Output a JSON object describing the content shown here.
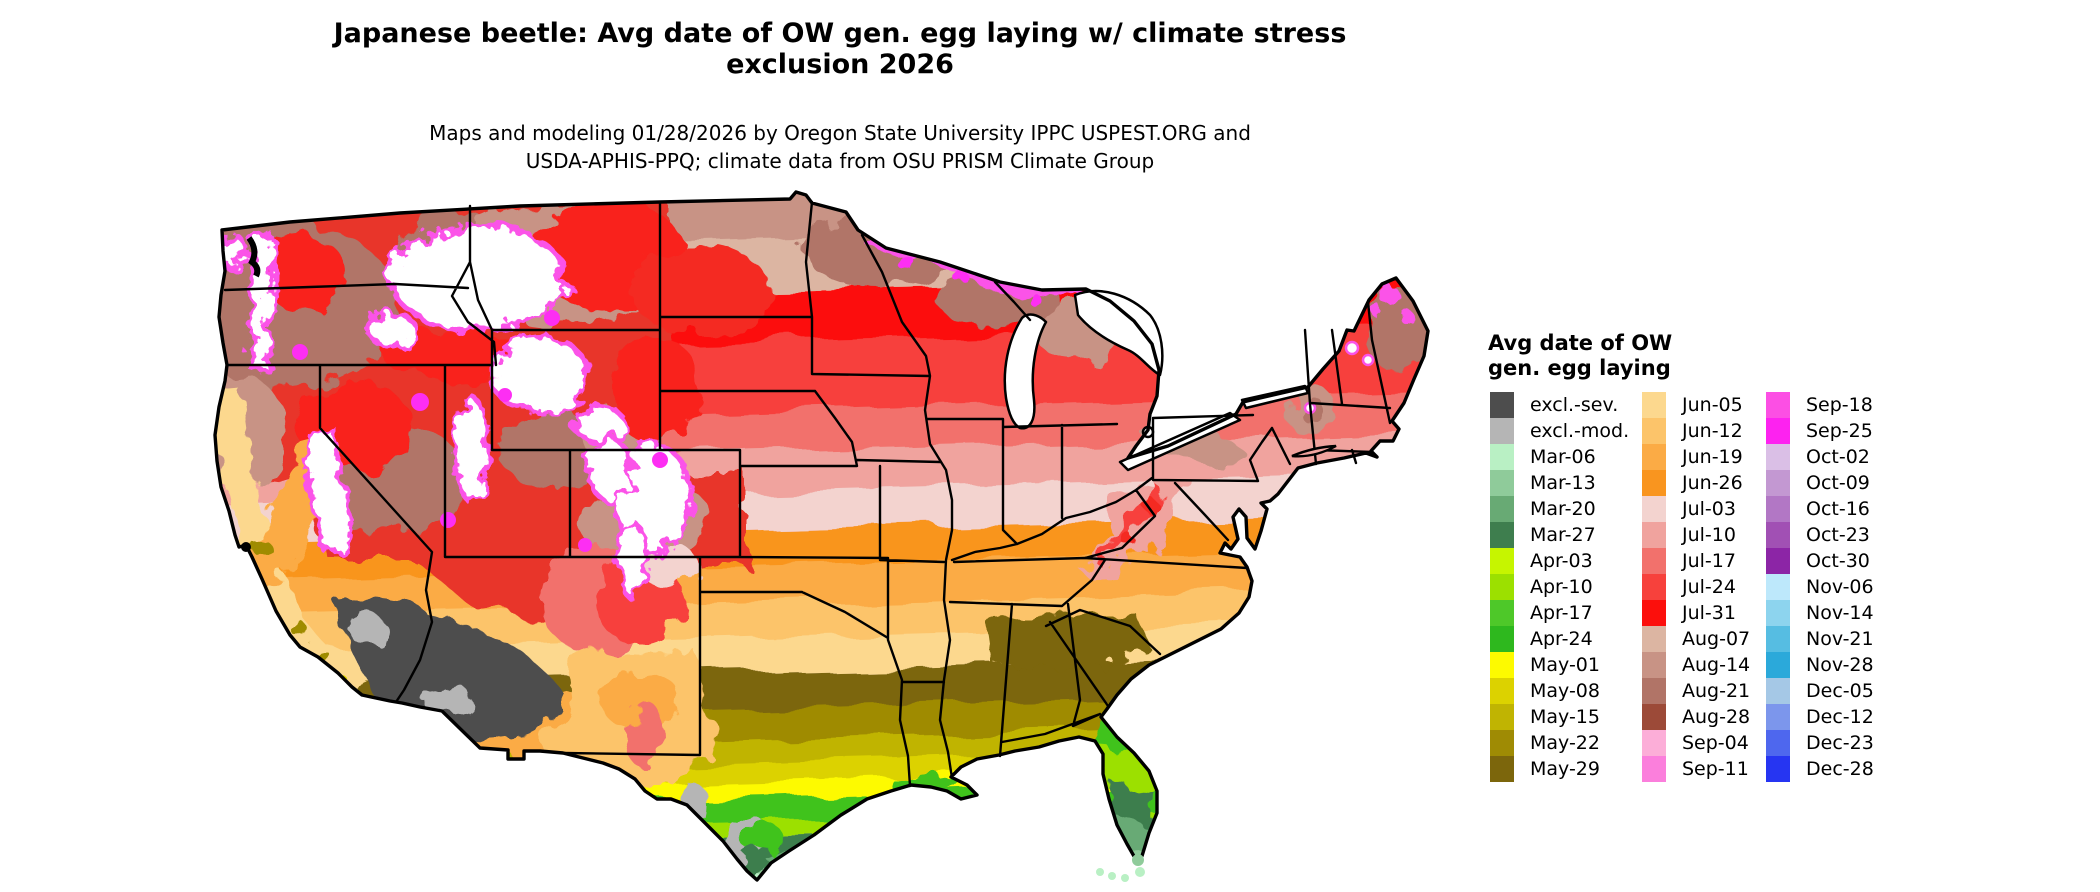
{
  "title": {
    "line1": "Japanese beetle: Avg date of OW gen. egg laying w/ climate stress",
    "line2": "exclusion 2026"
  },
  "subtitle": {
    "line1": "Maps and modeling 01/28/2026 by Oregon State University IPPC USPEST.ORG and",
    "line2": "USDA-APHIS-PPQ; climate data from OSU PRISM Climate Group"
  },
  "legend": {
    "title_line1": "Avg date of OW",
    "title_line2": "gen. egg laying",
    "columns": [
      [
        {
          "label": "excl.-sev.",
          "color": "#4d4d4d"
        },
        {
          "label": "excl.-mod.",
          "color": "#b5b5b5"
        },
        {
          "label": "Mar-06",
          "color": "#b9f0c4"
        },
        {
          "label": "Mar-13",
          "color": "#8fcb9a"
        },
        {
          "label": "Mar-20",
          "color": "#68aa74"
        },
        {
          "label": "Mar-27",
          "color": "#3e7e4e"
        },
        {
          "label": "Apr-03",
          "color": "#c6f500"
        },
        {
          "label": "Apr-10",
          "color": "#9ce000"
        },
        {
          "label": "Apr-17",
          "color": "#4ec829"
        },
        {
          "label": "Apr-24",
          "color": "#2eb81e"
        },
        {
          "label": "May-01",
          "color": "#fdfa00"
        },
        {
          "label": "May-08",
          "color": "#dcd200"
        },
        {
          "label": "May-15",
          "color": "#c0b402"
        },
        {
          "label": "May-22",
          "color": "#9f8b04"
        },
        {
          "label": "May-29",
          "color": "#7c660c"
        }
      ],
      [
        {
          "label": "Jun-05",
          "color": "#fcd88e"
        },
        {
          "label": "Jun-12",
          "color": "#fcc46a"
        },
        {
          "label": "Jun-19",
          "color": "#fbab45"
        },
        {
          "label": "Jun-26",
          "color": "#f9951f"
        },
        {
          "label": "Jul-03",
          "color": "#f3d3cf"
        },
        {
          "label": "Jul-10",
          "color": "#f0a39e"
        },
        {
          "label": "Jul-17",
          "color": "#f2716c"
        },
        {
          "label": "Jul-24",
          "color": "#f7413c"
        },
        {
          "label": "Jul-31",
          "color": "#fc0f0c"
        },
        {
          "label": "Aug-07",
          "color": "#dcb5a2"
        },
        {
          "label": "Aug-14",
          "color": "#c89385"
        },
        {
          "label": "Aug-21",
          "color": "#b17467"
        },
        {
          "label": "Aug-28",
          "color": "#9c4a38"
        },
        {
          "label": "Sep-04",
          "color": "#fcaed8"
        },
        {
          "label": "Sep-11",
          "color": "#fb7fdc"
        }
      ],
      [
        {
          "label": "Sep-18",
          "color": "#fc4fe4"
        },
        {
          "label": "Sep-25",
          "color": "#fd22f0"
        },
        {
          "label": "Oct-02",
          "color": "#dabfe6"
        },
        {
          "label": "Oct-09",
          "color": "#c398d2"
        },
        {
          "label": "Oct-16",
          "color": "#b277c5"
        },
        {
          "label": "Oct-23",
          "color": "#a150b4"
        },
        {
          "label": "Oct-30",
          "color": "#8c25a6"
        },
        {
          "label": "Nov-06",
          "color": "#bde8fb"
        },
        {
          "label": "Nov-14",
          "color": "#8dd4ee"
        },
        {
          "label": "Nov-21",
          "color": "#56bde2"
        },
        {
          "label": "Nov-28",
          "color": "#2ba9da"
        },
        {
          "label": "Dec-05",
          "color": "#a5c8e6"
        },
        {
          "label": "Dec-12",
          "color": "#7c96ec"
        },
        {
          "label": "Dec-23",
          "color": "#4e67ee"
        },
        {
          "label": "Dec-28",
          "color": "#2635f2"
        }
      ]
    ]
  },
  "map": {
    "region_label": "Contiguous United States choropleth of average overwintering generation egg-laying date"
  }
}
